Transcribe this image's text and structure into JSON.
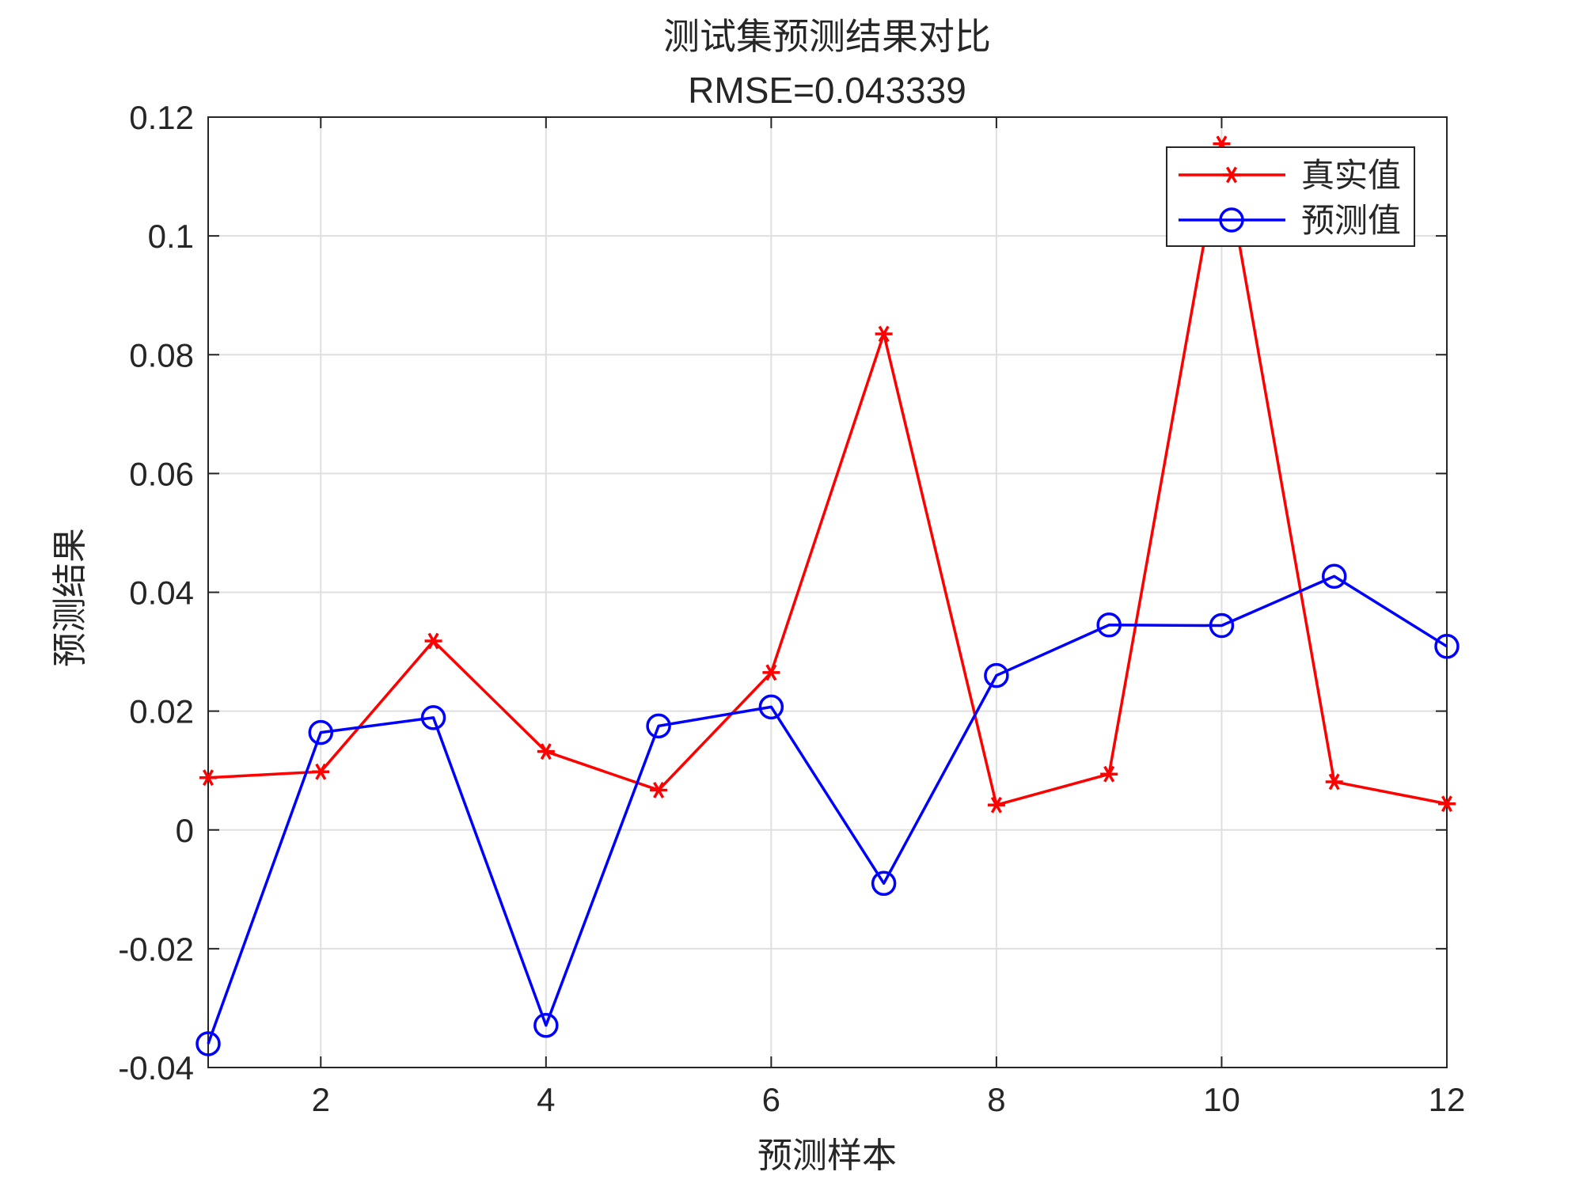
{
  "chart_data": {
    "type": "line",
    "title": "测试集预测结果对比",
    "subtitle": "RMSE=0.043339",
    "xlabel": "预测样本",
    "ylabel": "预测结果",
    "xlim": [
      1,
      12
    ],
    "ylim": [
      -0.04,
      0.12
    ],
    "x_ticks": [
      2,
      4,
      6,
      8,
      10,
      12
    ],
    "x_tick_labels": [
      "2",
      "4",
      "6",
      "8",
      "10",
      "12"
    ],
    "y_ticks": [
      -0.04,
      -0.02,
      0,
      0.02,
      0.04,
      0.06,
      0.08,
      0.1,
      0.12
    ],
    "y_tick_labels": [
      "-0.04",
      "-0.02",
      "0",
      "0.02",
      "0.04",
      "0.06",
      "0.08",
      "0.1",
      "0.12"
    ],
    "grid": true,
    "legend_position": "top-right",
    "x": [
      1,
      2,
      3,
      4,
      5,
      6,
      7,
      8,
      9,
      10,
      11,
      12
    ],
    "series": [
      {
        "name": "真实值",
        "color": "#ff0000",
        "marker": "asterisk",
        "values": [
          0.0088,
          0.0098,
          0.0318,
          0.0132,
          0.0067,
          0.0265,
          0.0835,
          0.0042,
          0.0094,
          0.1155,
          0.0081,
          0.0044
        ]
      },
      {
        "name": "预测值",
        "color": "#0000ff",
        "marker": "circle",
        "values": [
          -0.036,
          0.0164,
          0.0189,
          -0.0329,
          0.0175,
          0.0207,
          -0.009,
          0.026,
          0.0345,
          0.0344,
          0.0427,
          0.0309
        ]
      }
    ]
  }
}
